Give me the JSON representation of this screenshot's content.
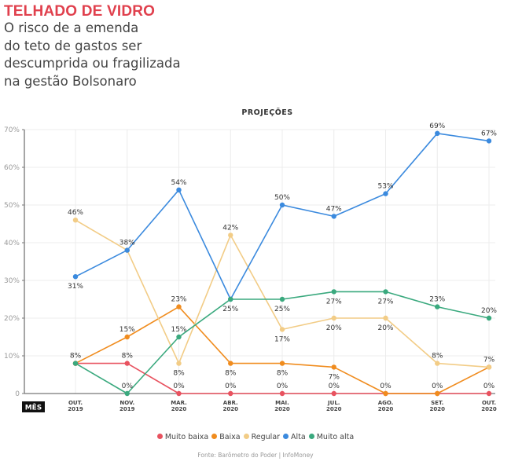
{
  "header": {
    "kicker": "TELHADO DE VIDRO",
    "headline_lines": [
      "O risco de a emenda",
      "do teto de gastos ser",
      "descumprida ou fragilizada",
      "na gestão Bolsonaro"
    ]
  },
  "footer": {
    "source": "Fonte: Barômetro do Poder | InfoMoney"
  },
  "chart_data": {
    "type": "line",
    "title": "PROJEÇÕES",
    "xlabel": "MÊS",
    "ylabel": "",
    "ylim": [
      0,
      70
    ],
    "yticks": [
      0,
      10,
      20,
      30,
      40,
      50,
      60,
      70
    ],
    "ytick_labels": [
      "0",
      "10%",
      "20%",
      "30%",
      "40%",
      "50%",
      "60%",
      "70%"
    ],
    "grid": true,
    "legend_position": "bottom",
    "categories": [
      [
        "OUT.",
        "2019"
      ],
      [
        "NOV.",
        "2019"
      ],
      [
        "MAR.",
        "2020"
      ],
      [
        "ABR.",
        "2020"
      ],
      [
        "MAI.",
        "2020"
      ],
      [
        "JUL.",
        "2020"
      ],
      [
        "AGO.",
        "2020"
      ],
      [
        "SET.",
        "2020"
      ],
      [
        "OUT.",
        "2020"
      ]
    ],
    "series": [
      {
        "name": "Muito baixa",
        "color": "#e8525f",
        "values": [
          8,
          8,
          0,
          0,
          0,
          0,
          0,
          0,
          0
        ]
      },
      {
        "name": "Baixa",
        "color": "#f08c1e",
        "values": [
          8,
          15,
          23,
          8,
          8,
          7,
          0,
          0,
          7
        ]
      },
      {
        "name": "Regular",
        "color": "#f2cc86",
        "values": [
          46,
          38,
          8,
          42,
          17,
          20,
          20,
          8,
          7
        ]
      },
      {
        "name": "Alta",
        "color": "#3b8ade",
        "values": [
          31,
          38,
          54,
          25,
          50,
          47,
          53,
          69,
          67
        ]
      },
      {
        "name": "Muito alta",
        "color": "#3aa97e",
        "values": [
          8,
          0,
          15,
          25,
          25,
          27,
          27,
          23,
          20
        ]
      }
    ],
    "data_labels": [
      {
        "series": "Muito baixa",
        "index": 0,
        "text": "8%"
      },
      {
        "series": "Muito baixa",
        "index": 1,
        "text": "8%"
      },
      {
        "series": "Muito baixa",
        "index": 2,
        "text": "0%"
      },
      {
        "series": "Muito baixa",
        "index": 3,
        "text": "0%"
      },
      {
        "series": "Muito baixa",
        "index": 4,
        "text": "0%"
      },
      {
        "series": "Muito baixa",
        "index": 5,
        "text": "0%"
      },
      {
        "series": "Muito baixa",
        "index": 6,
        "text": "0%"
      },
      {
        "series": "Muito baixa",
        "index": 7,
        "text": "0%"
      },
      {
        "series": "Muito baixa",
        "index": 8,
        "text": "0%"
      },
      {
        "series": "Baixa",
        "index": 1,
        "text": "15%"
      },
      {
        "series": "Baixa",
        "index": 2,
        "text": "23%"
      },
      {
        "series": "Baixa",
        "index": 3,
        "text": "8%"
      },
      {
        "series": "Baixa",
        "index": 4,
        "text": "8%"
      },
      {
        "series": "Baixa",
        "index": 5,
        "text": "7%"
      },
      {
        "series": "Baixa",
        "index": 8,
        "text": "7%"
      },
      {
        "series": "Regular",
        "index": 0,
        "text": "46%"
      },
      {
        "series": "Regular",
        "index": 2,
        "text": "8%"
      },
      {
        "series": "Regular",
        "index": 3,
        "text": "42%"
      },
      {
        "series": "Regular",
        "index": 4,
        "text": "17%"
      },
      {
        "series": "Regular",
        "index": 5,
        "text": "20%"
      },
      {
        "series": "Regular",
        "index": 6,
        "text": "20%"
      },
      {
        "series": "Regular",
        "index": 7,
        "text": "8%"
      },
      {
        "series": "Alta",
        "index": 0,
        "text": "31%"
      },
      {
        "series": "Alta",
        "index": 1,
        "text": "38%"
      },
      {
        "series": "Alta",
        "index": 2,
        "text": "54%"
      },
      {
        "series": "Alta",
        "index": 4,
        "text": "50%"
      },
      {
        "series": "Alta",
        "index": 5,
        "text": "47%"
      },
      {
        "series": "Alta",
        "index": 6,
        "text": "53%"
      },
      {
        "series": "Alta",
        "index": 7,
        "text": "69%"
      },
      {
        "series": "Alta",
        "index": 8,
        "text": "67%"
      },
      {
        "series": "Muito alta",
        "index": 1,
        "text": "0%"
      },
      {
        "series": "Muito alta",
        "index": 2,
        "text": "15%"
      },
      {
        "series": "Muito alta",
        "index": 3,
        "text": "25%"
      },
      {
        "series": "Muito alta",
        "index": 4,
        "text": "25%"
      },
      {
        "series": "Muito alta",
        "index": 5,
        "text": "27%"
      },
      {
        "series": "Muito alta",
        "index": 6,
        "text": "27%"
      },
      {
        "series": "Muito alta",
        "index": 7,
        "text": "23%"
      },
      {
        "series": "Muito alta",
        "index": 8,
        "text": "20%"
      }
    ]
  }
}
